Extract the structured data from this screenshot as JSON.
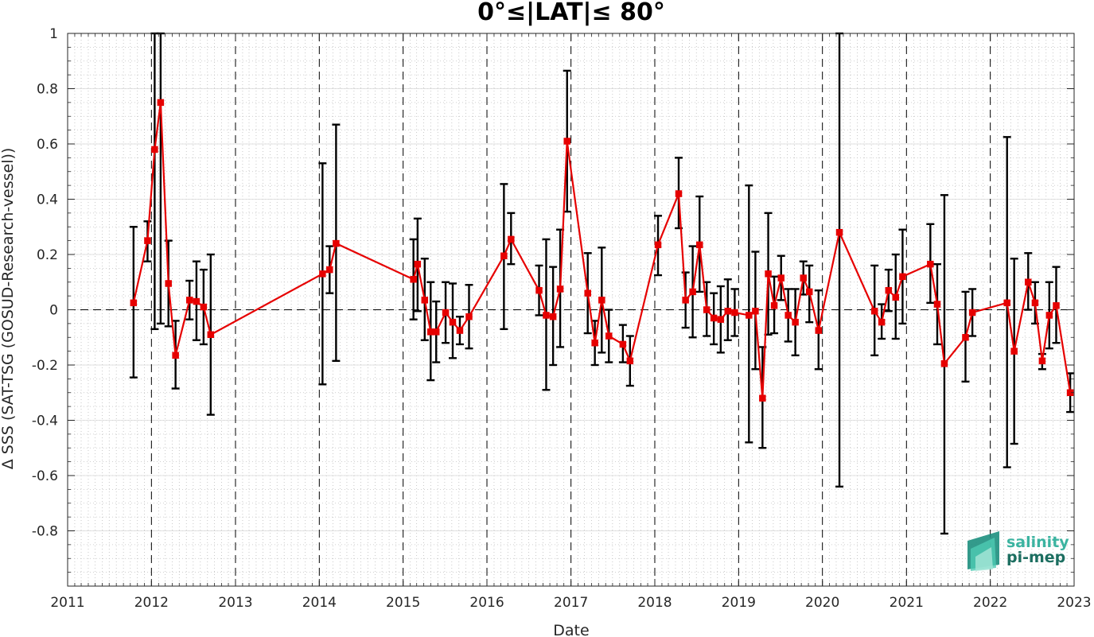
{
  "chart_data": {
    "type": "line",
    "title": "0°≤|LAT|≤ 80°",
    "xlabel": "Date",
    "ylabel": "Δ SSS (SAT-TSG (GOSUD-Research-vessel))",
    "xlim": [
      "2011-01-01",
      "2023-01-01"
    ],
    "ylim": [
      -1,
      1
    ],
    "x_ticks": [
      "2011",
      "2012",
      "2013",
      "2014",
      "2015",
      "2016",
      "2017",
      "2018",
      "2019",
      "2020",
      "2021",
      "2022",
      "2023"
    ],
    "y_ticks": [
      -0.8,
      -0.6,
      -0.4,
      -0.2,
      0,
      0.2,
      0.4,
      0.6,
      0.8,
      1
    ],
    "y_tick_labels": [
      "-0.8",
      "-0.6",
      "-0.4",
      "-0.2",
      "0",
      "0.2",
      "0.4",
      "0.6",
      "0.8",
      "1"
    ],
    "grid": "major and minor, dotted",
    "year_separators": "dashed vertical lines at each year",
    "zero_line": "dashed horizontal line at 0",
    "series_color": "#e60000",
    "errorbar_color": "#000000",
    "marker": "square",
    "points": [
      {
        "x": "2011-10-15",
        "y": 0.025,
        "lo": -0.245,
        "hi": 0.3
      },
      {
        "x": "2011-12-15",
        "y": 0.25,
        "lo": 0.175,
        "hi": 0.32
      },
      {
        "x": "2012-01-15",
        "y": 0.58,
        "lo": -0.07,
        "hi": 1.0
      },
      {
        "x": "2012-02-10",
        "y": 0.75,
        "lo": -0.05,
        "hi": 1.0
      },
      {
        "x": "2012-03-15",
        "y": 0.095,
        "lo": -0.06,
        "hi": 0.25
      },
      {
        "x": "2012-04-15",
        "y": -0.165,
        "lo": -0.285,
        "hi": -0.04
      },
      {
        "x": "2012-06-15",
        "y": 0.035,
        "lo": -0.035,
        "hi": 0.105
      },
      {
        "x": "2012-07-15",
        "y": 0.03,
        "lo": -0.11,
        "hi": 0.175
      },
      {
        "x": "2012-08-15",
        "y": 0.01,
        "lo": -0.125,
        "hi": 0.145
      },
      {
        "x": "2012-09-15",
        "y": -0.09,
        "lo": -0.38,
        "hi": 0.2
      },
      {
        "x": "2014-01-15",
        "y": 0.13,
        "lo": -0.27,
        "hi": 0.53
      },
      {
        "x": "2014-02-15",
        "y": 0.145,
        "lo": 0.06,
        "hi": 0.23
      },
      {
        "x": "2014-03-15",
        "y": 0.24,
        "lo": -0.185,
        "hi": 0.67
      },
      {
        "x": "2015-02-15",
        "y": 0.11,
        "lo": -0.035,
        "hi": 0.255
      },
      {
        "x": "2015-03-05",
        "y": 0.165,
        "lo": -0.005,
        "hi": 0.33
      },
      {
        "x": "2015-04-05",
        "y": 0.035,
        "lo": -0.11,
        "hi": 0.185
      },
      {
        "x": "2015-05-01",
        "y": -0.08,
        "lo": -0.255,
        "hi": 0.1
      },
      {
        "x": "2015-05-25",
        "y": -0.08,
        "lo": -0.19,
        "hi": 0.03
      },
      {
        "x": "2015-07-05",
        "y": -0.01,
        "lo": -0.12,
        "hi": 0.1
      },
      {
        "x": "2015-08-05",
        "y": -0.045,
        "lo": -0.175,
        "hi": 0.095
      },
      {
        "x": "2015-09-05",
        "y": -0.075,
        "lo": -0.125,
        "hi": -0.025
      },
      {
        "x": "2015-10-15",
        "y": -0.025,
        "lo": -0.14,
        "hi": 0.09
      },
      {
        "x": "2016-03-15",
        "y": 0.195,
        "lo": -0.07,
        "hi": 0.455
      },
      {
        "x": "2016-04-15",
        "y": 0.255,
        "lo": 0.165,
        "hi": 0.35
      },
      {
        "x": "2016-08-15",
        "y": 0.07,
        "lo": -0.02,
        "hi": 0.16
      },
      {
        "x": "2016-09-15",
        "y": -0.02,
        "lo": -0.29,
        "hi": 0.255
      },
      {
        "x": "2016-10-15",
        "y": -0.025,
        "lo": -0.2,
        "hi": 0.155
      },
      {
        "x": "2016-11-15",
        "y": 0.075,
        "lo": -0.135,
        "hi": 0.29
      },
      {
        "x": "2016-12-15",
        "y": 0.61,
        "lo": 0.355,
        "hi": 0.865
      },
      {
        "x": "2017-03-15",
        "y": 0.06,
        "lo": -0.085,
        "hi": 0.205
      },
      {
        "x": "2017-04-15",
        "y": -0.12,
        "lo": -0.2,
        "hi": -0.04
      },
      {
        "x": "2017-05-15",
        "y": 0.035,
        "lo": -0.155,
        "hi": 0.225
      },
      {
        "x": "2017-06-15",
        "y": -0.095,
        "lo": -0.19,
        "hi": 0.0
      },
      {
        "x": "2017-08-15",
        "y": -0.125,
        "lo": -0.19,
        "hi": -0.055
      },
      {
        "x": "2017-09-15",
        "y": -0.185,
        "lo": -0.275,
        "hi": -0.095
      },
      {
        "x": "2018-01-15",
        "y": 0.235,
        "lo": 0.125,
        "hi": 0.34
      },
      {
        "x": "2018-04-15",
        "y": 0.42,
        "lo": 0.295,
        "hi": 0.55
      },
      {
        "x": "2018-05-15",
        "y": 0.035,
        "lo": -0.065,
        "hi": 0.135
      },
      {
        "x": "2018-06-15",
        "y": 0.065,
        "lo": -0.1,
        "hi": 0.23
      },
      {
        "x": "2018-07-15",
        "y": 0.235,
        "lo": 0.065,
        "hi": 0.41
      },
      {
        "x": "2018-08-15",
        "y": 0.0,
        "lo": -0.095,
        "hi": 0.1
      },
      {
        "x": "2018-09-15",
        "y": -0.03,
        "lo": -0.125,
        "hi": 0.06
      },
      {
        "x": "2018-10-15",
        "y": -0.035,
        "lo": -0.155,
        "hi": 0.085
      },
      {
        "x": "2018-11-15",
        "y": -0.005,
        "lo": -0.11,
        "hi": 0.11
      },
      {
        "x": "2018-12-15",
        "y": -0.01,
        "lo": -0.095,
        "hi": 0.075
      },
      {
        "x": "2019-02-15",
        "y": -0.02,
        "lo": -0.48,
        "hi": 0.45
      },
      {
        "x": "2019-03-15",
        "y": -0.005,
        "lo": -0.215,
        "hi": 0.21
      },
      {
        "x": "2019-04-15",
        "y": -0.32,
        "lo": -0.5,
        "hi": -0.135
      },
      {
        "x": "2019-05-10",
        "y": 0.13,
        "lo": -0.09,
        "hi": 0.35
      },
      {
        "x": "2019-06-05",
        "y": 0.015,
        "lo": -0.085,
        "hi": 0.12
      },
      {
        "x": "2019-07-05",
        "y": 0.115,
        "lo": 0.035,
        "hi": 0.195
      },
      {
        "x": "2019-08-05",
        "y": -0.02,
        "lo": -0.115,
        "hi": 0.075
      },
      {
        "x": "2019-09-05",
        "y": -0.045,
        "lo": -0.165,
        "hi": 0.075
      },
      {
        "x": "2019-10-10",
        "y": 0.115,
        "lo": 0.055,
        "hi": 0.175
      },
      {
        "x": "2019-11-05",
        "y": 0.065,
        "lo": -0.045,
        "hi": 0.16
      },
      {
        "x": "2019-12-15",
        "y": -0.075,
        "lo": -0.215,
        "hi": 0.07
      },
      {
        "x": "2020-03-15",
        "y": 0.28,
        "lo": -0.64,
        "hi": 1.0
      },
      {
        "x": "2020-08-15",
        "y": -0.005,
        "lo": -0.165,
        "hi": 0.16
      },
      {
        "x": "2020-09-15",
        "y": -0.045,
        "lo": -0.105,
        "hi": 0.02
      },
      {
        "x": "2020-10-15",
        "y": 0.07,
        "lo": -0.005,
        "hi": 0.145
      },
      {
        "x": "2020-11-15",
        "y": 0.045,
        "lo": -0.105,
        "hi": 0.2
      },
      {
        "x": "2020-12-15",
        "y": 0.12,
        "lo": -0.05,
        "hi": 0.29
      },
      {
        "x": "2021-04-15",
        "y": 0.165,
        "lo": 0.025,
        "hi": 0.31
      },
      {
        "x": "2021-05-15",
        "y": 0.02,
        "lo": -0.125,
        "hi": 0.165
      },
      {
        "x": "2021-06-15",
        "y": -0.195,
        "lo": -0.81,
        "hi": 0.415
      },
      {
        "x": "2021-09-15",
        "y": -0.1,
        "lo": -0.26,
        "hi": 0.065
      },
      {
        "x": "2021-10-15",
        "y": -0.01,
        "lo": -0.095,
        "hi": 0.075
      },
      {
        "x": "2022-03-15",
        "y": 0.025,
        "lo": -0.57,
        "hi": 0.625
      },
      {
        "x": "2022-04-15",
        "y": -0.15,
        "lo": -0.485,
        "hi": 0.185
      },
      {
        "x": "2022-06-15",
        "y": 0.1,
        "lo": 0.0,
        "hi": 0.205
      },
      {
        "x": "2022-07-15",
        "y": 0.025,
        "lo": -0.05,
        "hi": 0.1
      },
      {
        "x": "2022-08-15",
        "y": -0.185,
        "lo": -0.215,
        "hi": -0.16
      },
      {
        "x": "2022-09-15",
        "y": -0.02,
        "lo": -0.14,
        "hi": 0.1
      },
      {
        "x": "2022-10-15",
        "y": 0.015,
        "lo": -0.12,
        "hi": 0.155
      },
      {
        "x": "2022-12-15",
        "y": -0.3,
        "lo": -0.37,
        "hi": -0.23
      }
    ]
  },
  "logo": {
    "line1": "salinity",
    "line2": "pi-mep",
    "color1": "#3bb3a0",
    "color2": "#1c6e60"
  }
}
